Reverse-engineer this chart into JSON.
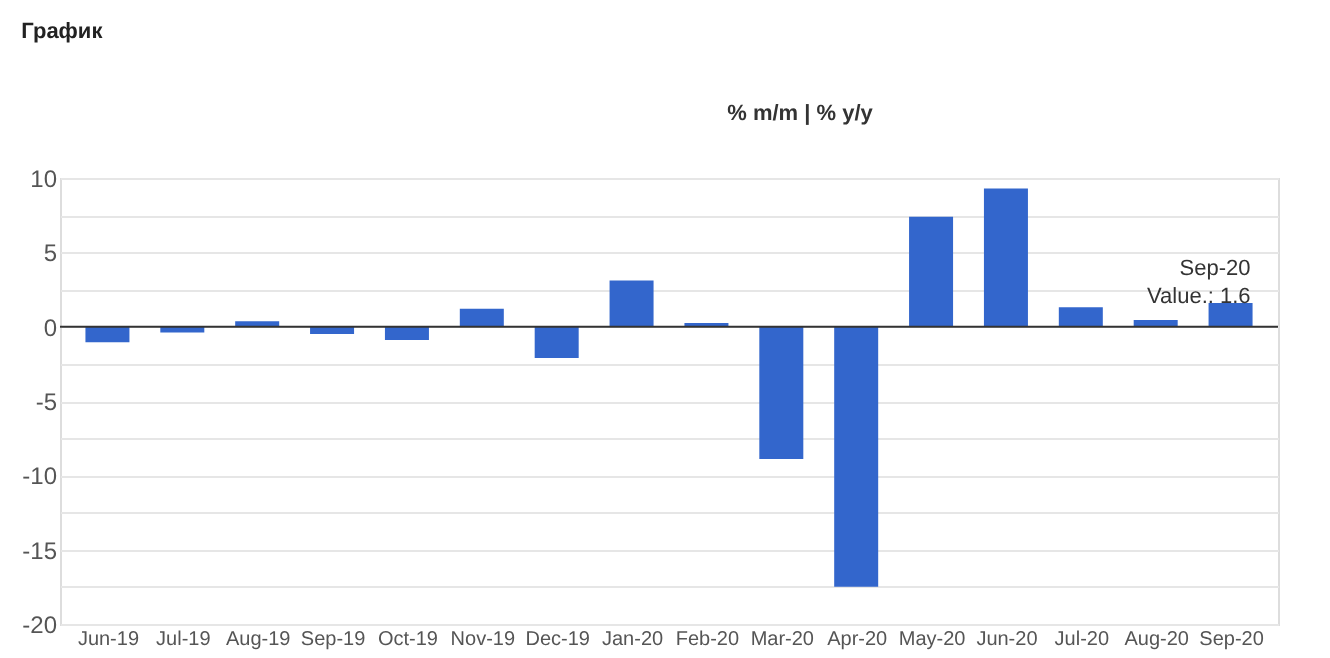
{
  "chart_data": {
    "type": "bar",
    "title": "График",
    "categories": [
      "Jun-19",
      "Jul-19",
      "Aug-19",
      "Sep-19",
      "Oct-19",
      "Nov-19",
      "Dec-19",
      "Jan-20",
      "Feb-20",
      "Mar-20",
      "Apr-20",
      "May-20",
      "Jun-20",
      "Jul-20",
      "Aug-20",
      "Sep-20"
    ],
    "values": [
      -1.05,
      -0.4,
      0.36,
      -0.5,
      -0.9,
      1.2,
      -2.1,
      3.1,
      0.25,
      -8.9,
      -17.5,
      7.4,
      9.3,
      1.3,
      0.45,
      1.6
    ],
    "color": "#3366cc",
    "ylim": [
      -20,
      10
    ],
    "yticks": [
      -20,
      {
        "value": -17.5,
        "label": null
      },
      -15,
      {
        "value": -12.5,
        "label": null
      },
      -10,
      {
        "value": -7.5,
        "label": null
      },
      -5,
      {
        "value": -2.5,
        "label": null
      },
      0,
      {
        "value": 2.5,
        "label": null
      },
      5,
      {
        "value": 7.5,
        "label": null
      },
      10
    ],
    "grid": "y",
    "annotations": [
      "% m/m | % y/y",
      {
        "text": "Sep-20\nValue.: 1.6",
        "x": "Sep-20",
        "y": 1.6
      }
    ]
  }
}
